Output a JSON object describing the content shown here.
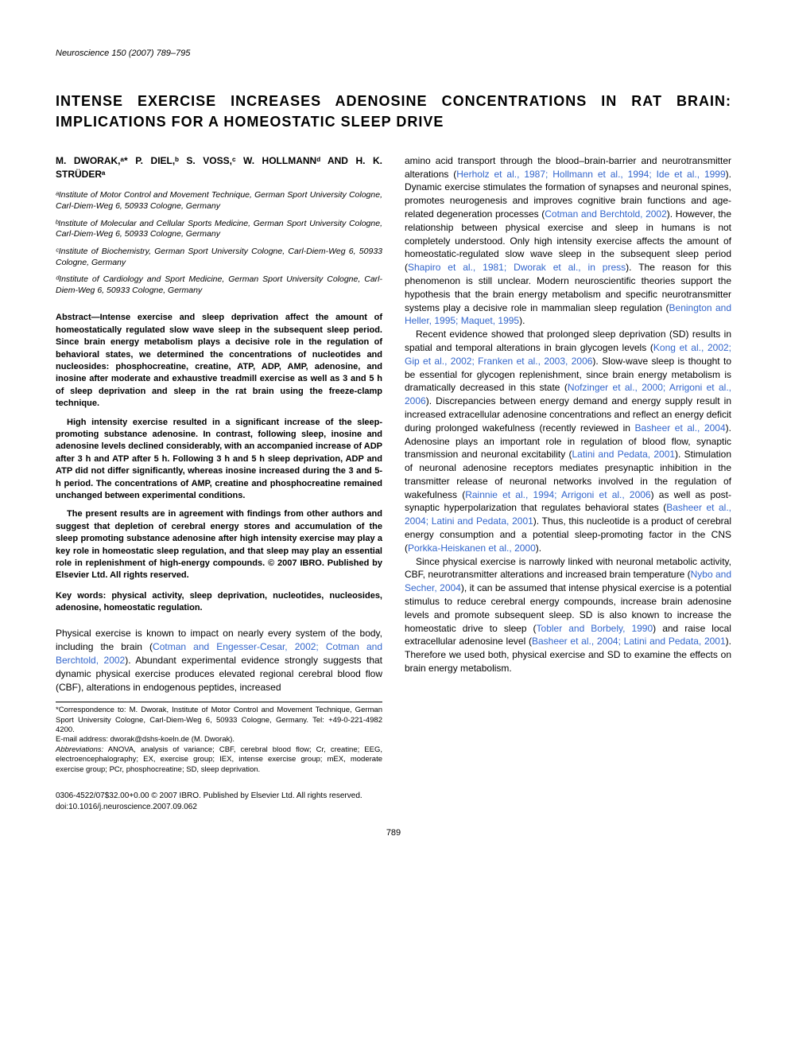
{
  "journal_header": "Neuroscience 150 (2007) 789–795",
  "title": "INTENSE EXERCISE INCREASES ADENOSINE CONCENTRATIONS IN RAT BRAIN: IMPLICATIONS FOR A HOMEOSTATIC SLEEP DRIVE",
  "authors_line": "M. DWORAK,ᵃ* P. DIEL,ᵇ S. VOSS,ᶜ W. HOLLMANNᵈ AND H. K. STRÜDERᵃ",
  "affiliations": {
    "a": "ᵃInstitute of Motor Control and Movement Technique, German Sport University Cologne, Carl-Diem-Weg 6, 50933 Cologne, Germany",
    "b": "ᵇInstitute of Molecular and Cellular Sports Medicine, German Sport University Cologne, Carl-Diem-Weg 6, 50933 Cologne, Germany",
    "c": "ᶜInstitute of Biochemistry, German Sport University Cologne, Carl-Diem-Weg 6, 50933 Cologne, Germany",
    "d": "ᵈInstitute of Cardiology and Sport Medicine, German Sport University Cologne, Carl-Diem-Weg 6, 50933 Cologne, Germany"
  },
  "abstract": {
    "p1": "Abstract—Intense exercise and sleep deprivation affect the amount of homeostatically regulated slow wave sleep in the subsequent sleep period. Since brain energy metabolism plays a decisive role in the regulation of behavioral states, we determined the concentrations of nucleotides and nucleosides: phosphocreatine, creatine, ATP, ADP, AMP, adenosine, and inosine after moderate and exhaustive treadmill exercise as well as 3 and 5 h of sleep deprivation and sleep in the rat brain using the freeze-clamp technique.",
    "p2": "High intensity exercise resulted in a significant increase of the sleep-promoting substance adenosine. In contrast, following sleep, inosine and adenosine levels declined considerably, with an accompanied increase of ADP after 3 h and ATP after 5 h. Following 3 h and 5 h sleep deprivation, ADP and ATP did not differ significantly, whereas inosine increased during the 3 and 5-h period. The concentrations of AMP, creatine and phosphocreatine remained unchanged between experimental conditions.",
    "p3": "The present results are in agreement with findings from other authors and suggest that depletion of cerebral energy stores and accumulation of the sleep promoting substance adenosine after high intensity exercise may play a key role in homeostatic sleep regulation, and that sleep may play an essential role in replenishment of high-energy compounds. © 2007 IBRO. Published by Elsevier Ltd. All rights reserved."
  },
  "keywords": "Key words: physical activity, sleep deprivation, nucleotides, nucleosides, adenosine, homeostatic regulation.",
  "intro_p1_a": "Physical exercise is known to impact on nearly every system of the body, including the brain (",
  "intro_p1_cite1": "Cotman and Engesser-Cesar, 2002; Cotman and Berchtold, 2002",
  "intro_p1_b": "). Abundant experimental evidence strongly suggests that dynamic physical exercise produces elevated regional cerebral blood flow (CBF), alterations in endogenous peptides, increased",
  "col2_p1_a": "amino acid transport through the blood–brain-barrier and neurotransmitter alterations (",
  "col2_p1_cite1": "Herholz et al., 1987; Hollmann et al., 1994; Ide et al., 1999",
  "col2_p1_b": "). Dynamic exercise stimulates the formation of synapses and neuronal spines, promotes neurogenesis and improves cognitive brain functions and age-related degeneration processes (",
  "col2_p1_cite2": "Cotman and Berchtold, 2002",
  "col2_p1_c": "). However, the relationship between physical exercise and sleep in humans is not completely understood. Only high intensity exercise affects the amount of homeostatic-regulated slow wave sleep in the subsequent sleep period (",
  "col2_p1_cite3": "Shapiro et al., 1981; Dworak et al., in press",
  "col2_p1_d": "). The reason for this phenomenon is still unclear. Modern neuroscientific theories support the hypothesis that the brain energy metabolism and specific neurotransmitter systems play a decisive role in mammalian sleep regulation (",
  "col2_p1_cite4": "Benington and Heller, 1995; Maquet, 1995",
  "col2_p1_e": ").",
  "col2_p2_a": "Recent evidence showed that prolonged sleep deprivation (SD) results in spatial and temporal alterations in brain glycogen levels (",
  "col2_p2_cite1": "Kong et al., 2002; Gip et al., 2002; Franken et al., 2003, 2006",
  "col2_p2_b": "). Slow-wave sleep is thought to be essential for glycogen replenishment, since brain energy metabolism is dramatically decreased in this state (",
  "col2_p2_cite2": "Nofzinger et al., 2000; Arrigoni et al., 2006",
  "col2_p2_c": "). Discrepancies between energy demand and energy supply result in increased extracellular adenosine concentrations and reflect an energy deficit during prolonged wakefulness (recently reviewed in ",
  "col2_p2_cite3": "Basheer et al., 2004",
  "col2_p2_d": "). Adenosine plays an important role in regulation of blood flow, synaptic transmission and neuronal excitability (",
  "col2_p2_cite4": "Latini and Pedata, 2001",
  "col2_p2_e": "). Stimulation of neuronal adenosine receptors mediates presynaptic inhibition in the transmitter release of neuronal networks involved in the regulation of wakefulness (",
  "col2_p2_cite5": "Rainnie et al., 1994; Arrigoni et al., 2006",
  "col2_p2_f": ") as well as post-synaptic hyperpolarization that regulates behavioral states (",
  "col2_p2_cite6": "Basheer et al., 2004; Latini and Pedata, 2001",
  "col2_p2_g": "). Thus, this nucleotide is a product of cerebral energy consumption and a potential sleep-promoting factor in the CNS (",
  "col2_p2_cite7": "Porkka-Heiskanen et al., 2000",
  "col2_p2_h": ").",
  "col2_p3_a": "Since physical exercise is narrowly linked with neuronal metabolic activity, CBF, neurotransmitter alterations and increased brain temperature (",
  "col2_p3_cite1": "Nybo and Secher, 2004",
  "col2_p3_b": "), it can be assumed that intense physical exercise is a potential stimulus to reduce cerebral energy compounds, increase brain adenosine levels and promote subsequent sleep. SD is also known to increase the homeostatic drive to sleep (",
  "col2_p3_cite2": "Tobler and Borbely, 1990",
  "col2_p3_c": ") and raise local extracellular adenosine level (",
  "col2_p3_cite3": "Basheer et al., 2004; Latini and Pedata, 2001",
  "col2_p3_d": "). Therefore we used both, physical exercise and SD to examine the effects on brain energy metabolism.",
  "footnotes": {
    "correspondence": "*Correspondence to: M. Dworak, Institute of Motor Control and Movement Technique, German Sport University Cologne, Carl-Diem-Weg 6, 50933 Cologne, Germany. Tel: +49-0-221-4982 4200.",
    "email_label": "E-mail address: ",
    "email": "dworak@dshs-koeln.de (M. Dworak).",
    "abbrev_label": "Abbreviations:",
    "abbrev": " ANOVA, analysis of variance; CBF, cerebral blood flow; Cr, creatine; EEG, electroencephalography; EX, exercise group; IEX, intense exercise group; mEX, moderate exercise group; PCr, phosphocreatine; SD, sleep deprivation."
  },
  "footer": {
    "issn": "0306-4522/07$32.00+0.00 © 2007 IBRO. Published by Elsevier Ltd. All rights reserved.",
    "doi": "doi:10.1016/j.neuroscience.2007.09.062"
  },
  "page_number": "789",
  "colors": {
    "citation": "#3366cc",
    "text": "#000000",
    "background": "#ffffff"
  }
}
